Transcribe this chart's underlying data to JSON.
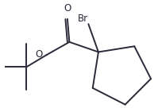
{
  "bg_color": "#ffffff",
  "line_color": "#2a2a3a",
  "label_Br": "Br",
  "label_O_carbonyl": "O",
  "label_O_ester": "O",
  "figsize": [
    2.05,
    1.41
  ],
  "dpi": 100,
  "lw": 1.4
}
